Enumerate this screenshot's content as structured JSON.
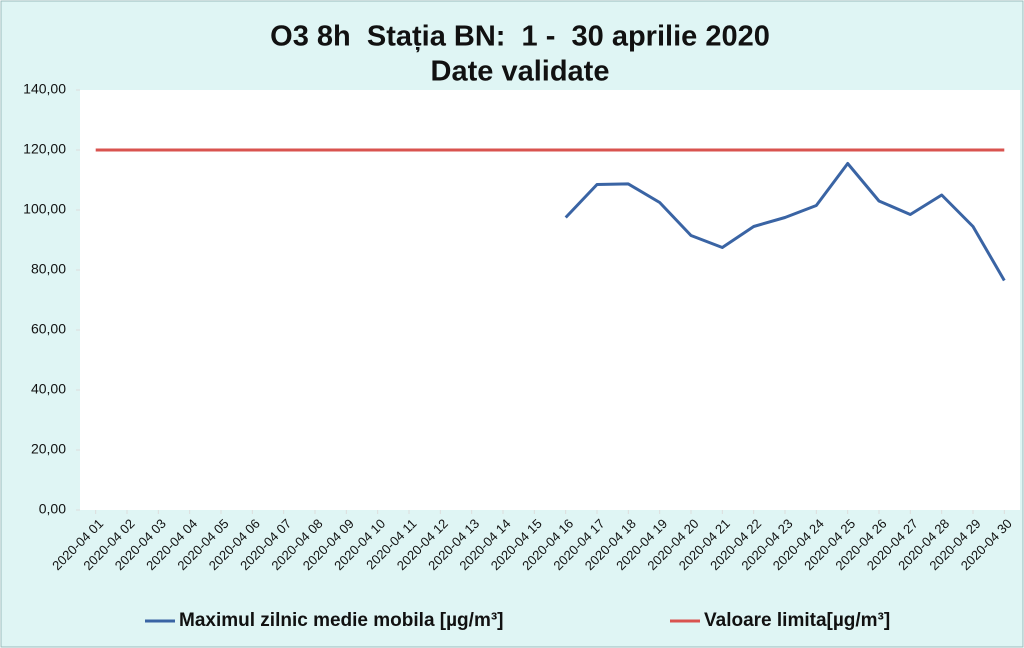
{
  "chart_data": {
    "type": "line",
    "title": "O3 8h  Stația BN:  1 -  30 aprilie 2020",
    "subtitle": "Date validate",
    "categories": [
      "2020-04 01",
      "2020-04 02",
      "2020-04 03",
      "2020-04 04",
      "2020-04 05",
      "2020-04 06",
      "2020-04 07",
      "2020-04 08",
      "2020-04 09",
      "2020-04 10",
      "2020-04 11",
      "2020-04 12",
      "2020-04 13",
      "2020-04 14",
      "2020-04 15",
      "2020-04 16",
      "2020-04 17",
      "2020-04 18",
      "2020-04 19",
      "2020-04 20",
      "2020-04 21",
      "2020-04 22",
      "2020-04 23",
      "2020-04 24",
      "2020-04 25",
      "2020-04 26",
      "2020-04 27",
      "2020-04 28",
      "2020-04 29",
      "2020-04 30"
    ],
    "series": [
      {
        "name": "Maximul zilnic medie mobila [µg/m³]",
        "color": "#3a64a4",
        "values": [
          null,
          null,
          null,
          null,
          null,
          null,
          null,
          null,
          null,
          null,
          null,
          null,
          null,
          null,
          null,
          97.5,
          108.5,
          108.7,
          102.5,
          91.5,
          87.5,
          94.5,
          97.5,
          101.5,
          115.5,
          103,
          98.5,
          105,
          94.5,
          76.5
        ]
      },
      {
        "name": "Valoare limita[µg/m³]",
        "color": "#d9534f",
        "values": [
          120,
          120,
          120,
          120,
          120,
          120,
          120,
          120,
          120,
          120,
          120,
          120,
          120,
          120,
          120,
          120,
          120,
          120,
          120,
          120,
          120,
          120,
          120,
          120,
          120,
          120,
          120,
          120,
          120,
          120
        ]
      }
    ],
    "ylim": [
      0,
      140
    ],
    "yticks": [
      {
        "value": 0,
        "label": "0,00"
      },
      {
        "value": 20,
        "label": "20,00"
      },
      {
        "value": 40,
        "label": "40,00"
      },
      {
        "value": 60,
        "label": "60,00"
      },
      {
        "value": 80,
        "label": "80,00"
      },
      {
        "value": 100,
        "label": "100,00"
      },
      {
        "value": 120,
        "label": "120,00"
      },
      {
        "value": 140,
        "label": "140,00"
      }
    ],
    "legend": "bottom"
  }
}
